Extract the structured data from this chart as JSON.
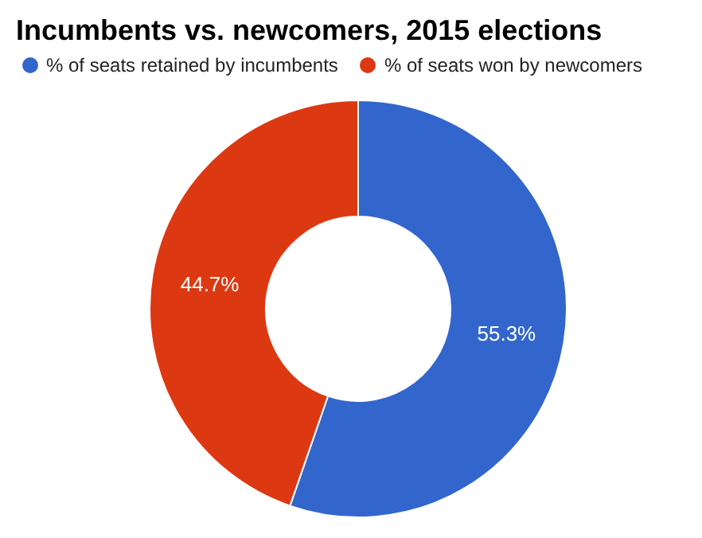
{
  "chart_data": {
    "type": "donut",
    "title": "Incumbents vs. newcomers, 2015 elections",
    "categories": [
      "% of seats retained by incumbents",
      "% of seats won by newcomers"
    ],
    "values": [
      55.3,
      44.7
    ],
    "colors": [
      "#3366cc",
      "#dc3912"
    ],
    "value_labels": [
      "55.3%",
      "44.7%"
    ],
    "legend": "top"
  }
}
